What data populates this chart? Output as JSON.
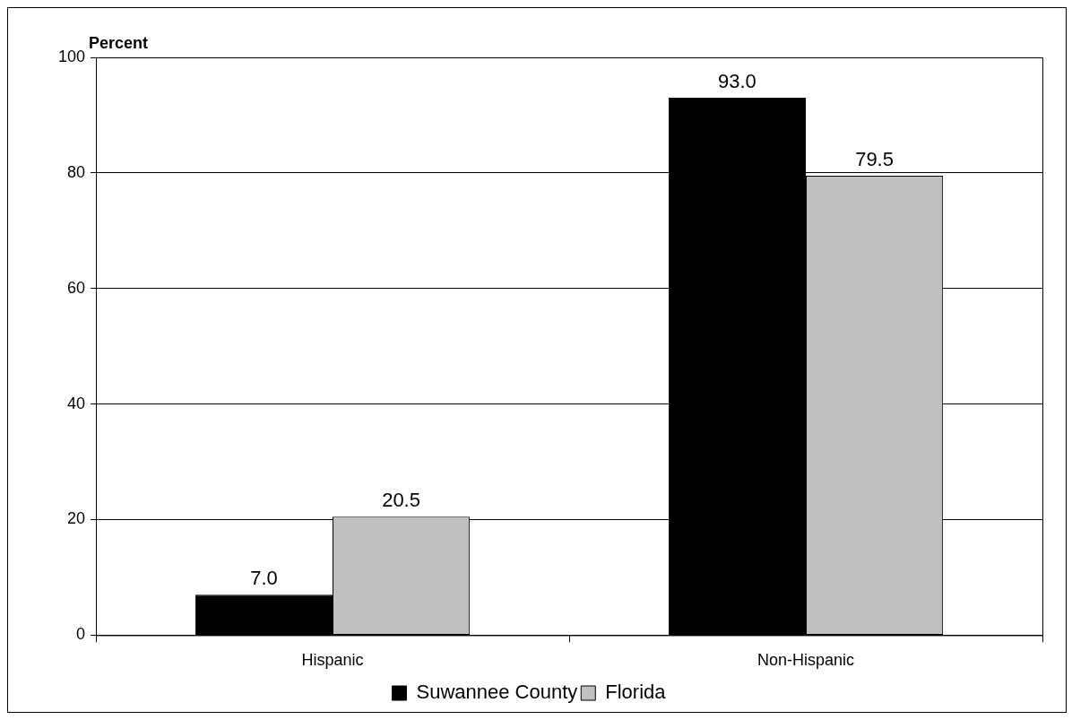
{
  "chart_data": {
    "type": "bar",
    "ylabel": "Percent",
    "categories": [
      "Hispanic",
      "Non-Hispanic"
    ],
    "series": [
      {
        "name": "Suwannee County",
        "color": "#000000",
        "values": [
          7.0,
          93.0
        ],
        "value_labels": [
          "7.0",
          "93.0"
        ]
      },
      {
        "name": "Florida",
        "color": "#c0c0c0",
        "values": [
          20.5,
          79.5
        ],
        "value_labels": [
          "20.5",
          "79.5"
        ]
      }
    ],
    "ylim": [
      0,
      100
    ],
    "yticks": [
      0,
      20,
      40,
      60,
      80,
      100
    ],
    "grid": "y",
    "legend": "bottom"
  }
}
